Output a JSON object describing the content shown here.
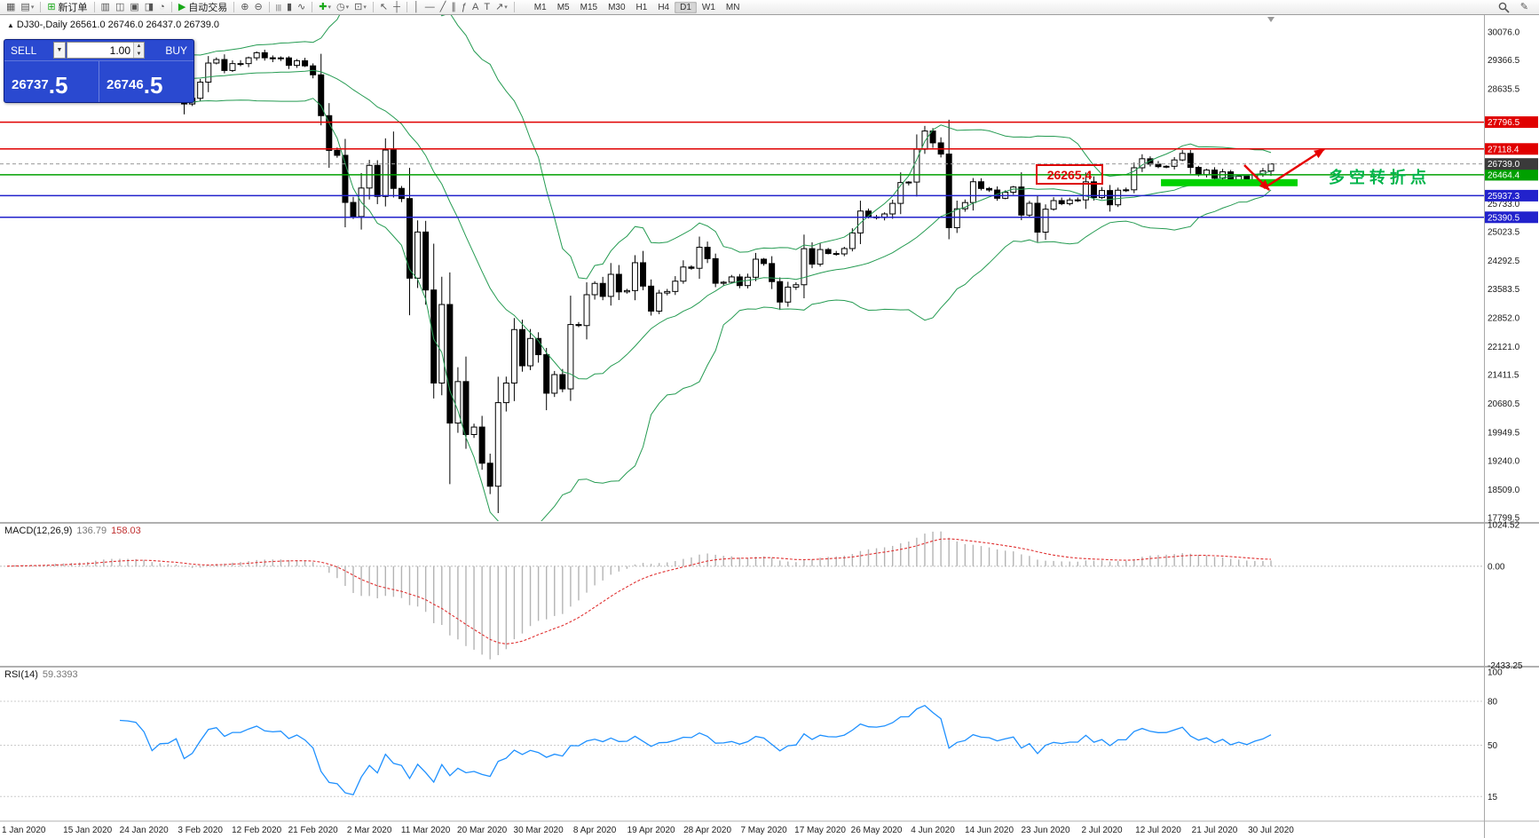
{
  "toolbar": {
    "items": [
      {
        "name": "new-chart-icon",
        "glyph": "▦"
      },
      {
        "name": "profiles-icon",
        "glyph": "▤",
        "caret": true
      },
      {
        "name": "sep"
      },
      {
        "name": "new-order-button",
        "label": "新订单",
        "glyph": "⊞",
        "glyph_color": "#18a818",
        "type": "button"
      },
      {
        "name": "sep"
      },
      {
        "name": "market-watch-icon",
        "glyph": "▥"
      },
      {
        "name": "data-window-icon",
        "glyph": "◫"
      },
      {
        "name": "navigator-icon",
        "glyph": "▣"
      },
      {
        "name": "terminal-icon",
        "glyph": "◨"
      },
      {
        "name": "strategy-tester-icon",
        "glyph": "◔"
      },
      {
        "name": "sep"
      },
      {
        "name": "auto-trading-button",
        "label": "自动交易",
        "glyph": "▶",
        "glyph_color": "#18a818",
        "type": "button"
      },
      {
        "name": "sep"
      },
      {
        "name": "zoom-in-icon",
        "glyph": "⊕"
      },
      {
        "name": "zoom-out-icon",
        "glyph": "⊖"
      },
      {
        "name": "sep"
      },
      {
        "name": "bar-chart-icon",
        "glyph": "|||"
      },
      {
        "name": "candlestick-chart-icon",
        "glyph": "▮"
      },
      {
        "name": "line-chart-icon",
        "glyph": "∿"
      },
      {
        "name": "sep"
      },
      {
        "name": "indicators-add-icon",
        "glyph": "✚",
        "glyph_color": "#18a818",
        "caret": true
      },
      {
        "name": "period-icon",
        "glyph": "◷",
        "caret": true
      },
      {
        "name": "templates-icon",
        "glyph": "⊡",
        "caret": true
      },
      {
        "name": "sep"
      },
      {
        "name": "cursor-icon",
        "glyph": "↖"
      },
      {
        "name": "crosshair-icon",
        "glyph": "┼"
      },
      {
        "name": "sep"
      },
      {
        "name": "vertical-line-icon",
        "glyph": "│"
      },
      {
        "name": "horizontal-line-icon",
        "glyph": "—"
      },
      {
        "name": "trendline-icon",
        "glyph": "╱"
      },
      {
        "name": "channel-icon",
        "glyph": "∥"
      },
      {
        "name": "fibonacci-icon",
        "glyph": "ƒ"
      },
      {
        "name": "text-icon",
        "glyph": "A"
      },
      {
        "name": "label-icon",
        "glyph": "T"
      },
      {
        "name": "arrows-icon",
        "glyph": "↗",
        "caret": true
      },
      {
        "name": "sep"
      }
    ],
    "timeframes": [
      "M1",
      "M5",
      "M15",
      "M30",
      "H1",
      "H4",
      "D1",
      "W1",
      "MN"
    ],
    "active_timeframe": "D1",
    "right_icons": [
      {
        "name": "search-icon"
      },
      {
        "name": "chart-edit-icon",
        "glyph": "✎"
      }
    ]
  },
  "chart_header": {
    "title": "DJ30-,Daily 26561.0 26746.0 26437.0 26739.0"
  },
  "trade_panel": {
    "sell_label": "SELL",
    "buy_label": "BUY",
    "lot_size": "1.00",
    "sell_price_main": "26737",
    "sell_price_fraction": ".5",
    "buy_price_main": "26746",
    "buy_price_fraction": ".5"
  },
  "chart_data": {
    "type": "candlestick",
    "symbol": "DJ30-",
    "timeframe": "Daily",
    "ohlc_title": {
      "open": 26561.0,
      "high": 26746.0,
      "low": 26437.0,
      "close": 26739.0
    },
    "closes": [
      28538,
      28868,
      28634,
      28703,
      28583,
      28745,
      28956,
      28823,
      28907,
      28939,
      29030,
      29297,
      29348,
      29320,
      29196,
      29186,
      29160,
      28989,
      28535,
      28722,
      28734,
      28859,
      28256,
      28399,
      28807,
      29290,
      29379,
      29102,
      29276,
      29276,
      29423,
      29551,
      29423,
      29398,
      29420,
      29232,
      29348,
      29219,
      28992,
      27960,
      27081,
      26957,
      25766,
      25409,
      26130,
      26703,
      25917,
      27090,
      26121,
      25864,
      23851,
      25018,
      23553,
      21200,
      23185,
      20188,
      21237,
      19898,
      20087,
      19173,
      18591,
      20704,
      21200,
      22552,
      21636,
      22327,
      21917,
      20943,
      21413,
      21052,
      22679,
      22653,
      23433,
      23719,
      23390,
      23949,
      23504,
      23537,
      24242,
      23650,
      23018,
      23475,
      23515,
      23775,
      24133,
      24101,
      24633,
      24345,
      23723,
      23749,
      23883,
      23664,
      23875,
      24331,
      24221,
      23764,
      23247,
      23625,
      23685,
      24597,
      24206,
      24575,
      24474,
      24465,
      24600,
      24995,
      25548,
      25400,
      25383,
      25475,
      25742,
      26269,
      26281,
      27110,
      27572,
      27272,
      26989,
      25128,
      25605,
      25763,
      26289,
      26119,
      26080,
      25871,
      26024,
      26156,
      25445,
      25745,
      25015,
      25595,
      25812,
      25734,
      25827,
      25830,
      26287,
      25890,
      26067,
      25706,
      26075,
      26085,
      26642,
      26870,
      26734,
      26671,
      26680,
      26840,
      27005,
      26652,
      26469,
      26584,
      26379,
      26539,
      26313,
      26428,
      26330,
      26470,
      26561,
      26739
    ],
    "x_tick_labels": [
      {
        "label": "1 Jan 2020",
        "i": 0
      },
      {
        "label": "15 Jan 2020",
        "i": 10
      },
      {
        "label": "24 Jan 2020",
        "i": 17
      },
      {
        "label": "3 Feb 2020",
        "i": 24
      },
      {
        "label": "12 Feb 2020",
        "i": 31
      },
      {
        "label": "21 Feb 2020",
        "i": 38
      },
      {
        "label": "2 Mar 2020",
        "i": 45
      },
      {
        "label": "11 Mar 2020",
        "i": 52
      },
      {
        "label": "20 Mar 2020",
        "i": 59
      },
      {
        "label": "30 Mar 2020",
        "i": 66
      },
      {
        "label": "8 Apr 2020",
        "i": 73
      },
      {
        "label": "19 Apr 2020",
        "i": 80
      },
      {
        "label": "28 Apr 2020",
        "i": 87
      },
      {
        "label": "7 May 2020",
        "i": 94
      },
      {
        "label": "17 May 2020",
        "i": 101
      },
      {
        "label": "26 May 2020",
        "i": 108
      },
      {
        "label": "4 Jun 2020",
        "i": 115
      },
      {
        "label": "14 Jun 2020",
        "i": 122
      },
      {
        "label": "23 Jun 2020",
        "i": 129
      },
      {
        "label": "2 Jul 2020",
        "i": 136
      },
      {
        "label": "12 Jul 2020",
        "i": 143
      },
      {
        "label": "21 Jul 2020",
        "i": 150
      },
      {
        "label": "30 Jul 2020",
        "i": 157
      }
    ],
    "price_axis_ticks": [
      "30076.0",
      "29366.5",
      "28635.5",
      "25733.0",
      "25023.5",
      "24292.5",
      "23583.5",
      "22852.0",
      "22121.0",
      "21411.5",
      "20680.5",
      "19949.5",
      "19240.0",
      "18509.0",
      "17799.5"
    ],
    "hlines": [
      {
        "price": 27796.5,
        "label": "27796.5",
        "color": "#e00000"
      },
      {
        "price": 27118.4,
        "label": "27118.4",
        "color": "#e00000"
      },
      {
        "price": 26464.4,
        "label": "26464.4",
        "color": "#00a000"
      },
      {
        "price": 25937.3,
        "label": "25937.3",
        "color": "#2222cc"
      },
      {
        "price": 25390.5,
        "label": "25390.5",
        "color": "#2222cc"
      }
    ],
    "bid": {
      "price": 26739.0,
      "label": "26739.0",
      "badge_color": "#3a3a3a"
    },
    "indicators": {
      "bollinger": {
        "period": 20,
        "deviations": 2,
        "color": "#259b52"
      },
      "macd": {
        "label": "MACD(12,26,9)",
        "value_main": "136.79",
        "value_signal": "158.03",
        "axis_ticks": [
          "1024.52",
          "0.00",
          "-2433.25"
        ],
        "histogram_color": "#b4b4b4",
        "signal_color": "#e03030"
      },
      "rsi": {
        "label": "RSI(14)",
        "value": "59.3393",
        "levels": [
          "100",
          "80",
          "50",
          "15"
        ],
        "color": "#1e90ff"
      }
    },
    "annotations": {
      "price_callout": {
        "text": "26265.4",
        "color": "#dd0000"
      },
      "support_bar": {
        "price": 26265.4,
        "color": "#00d200"
      },
      "arrows_color": "#e60000",
      "note_text": "多空转折点",
      "note_color": "#00b44a"
    }
  }
}
